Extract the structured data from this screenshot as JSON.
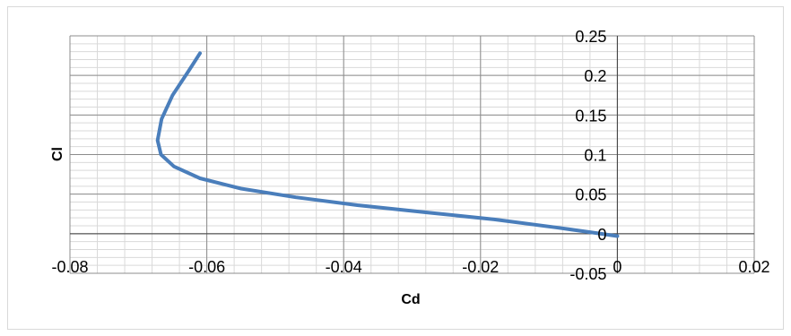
{
  "chart_data": {
    "type": "line",
    "title": "",
    "xlabel": "Cd",
    "ylabel": "Cl",
    "xlim": [
      -0.08,
      0.02
    ],
    "ylim": [
      -0.05,
      0.25
    ],
    "x_ticks": [
      "-0.08",
      "-0.06",
      "-0.04",
      "-0.02",
      "0",
      "0.02"
    ],
    "y_ticks": [
      "-0.05",
      "0",
      "0.05",
      "0.1",
      "0.15",
      "0.2",
      "0.25"
    ],
    "grid": true,
    "legend": "none",
    "series": [
      {
        "color": "#4a7ebb",
        "x": [
          -0.061,
          -0.0627,
          -0.065,
          -0.0666,
          -0.0672,
          -0.0667,
          -0.0648,
          -0.061,
          -0.055,
          -0.047,
          -0.038,
          -0.028,
          -0.018,
          -0.009,
          -0.004,
          0.0
        ],
        "y": [
          0.228,
          0.205,
          0.175,
          0.145,
          0.118,
          0.1,
          0.085,
          0.07,
          0.057,
          0.046,
          0.036,
          0.027,
          0.018,
          0.008,
          0.002,
          -0.003
        ]
      }
    ]
  }
}
